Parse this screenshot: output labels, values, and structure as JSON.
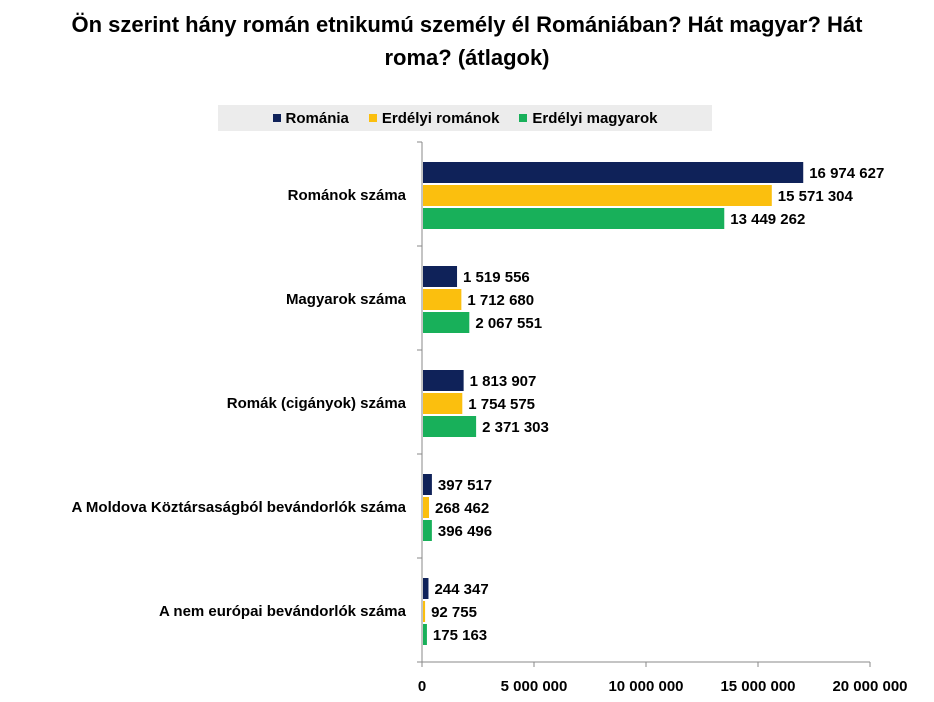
{
  "title_lines": [
    "Ön szerint hány román etnikumú személy él Romániában? Hát magyar? Hát",
    "roma? (átlagok)"
  ],
  "chart_data": {
    "type": "bar",
    "orientation": "horizontal",
    "title": "Ön szerint hány román etnikumú személy él Romániában? Hát magyar? Hát roma? (átlagok)",
    "categories": [
      "Románok száma",
      "Magyarok száma",
      "Romák (cigányok) száma",
      "A Moldova Köztársaságból bevándorlók száma",
      "A nem európai bevándorlók száma"
    ],
    "series": [
      {
        "name": "Románia",
        "color": "#0f2259",
        "values": [
          16974627,
          1519556,
          1813907,
          397517,
          244347
        ],
        "labels": [
          "16 974 627",
          "1 519 556",
          "1 813 907",
          "397 517",
          "244 347"
        ]
      },
      {
        "name": "Erdélyi románok",
        "color": "#fbbf0e",
        "values": [
          15571304,
          1712680,
          1754575,
          268462,
          92755
        ],
        "labels": [
          "15 571 304",
          "1 712 680",
          "1 754 575",
          "268 462",
          "92 755"
        ]
      },
      {
        "name": "Erdélyi magyarok",
        "color": "#18b05a",
        "values": [
          13449262,
          2067551,
          2371303,
          396496,
          175163
        ],
        "labels": [
          "13 449 262",
          "2 067 551",
          "2 371 303",
          "396 496",
          "175 163"
        ]
      }
    ],
    "xlim": [
      0,
      20000000
    ],
    "ticks": [
      0,
      5000000,
      10000000,
      15000000,
      20000000
    ],
    "tick_labels": [
      "0",
      "5 000 000",
      "10 000 000",
      "15 000 000",
      "20 000 000"
    ],
    "legend_position": "top",
    "grid": false
  }
}
